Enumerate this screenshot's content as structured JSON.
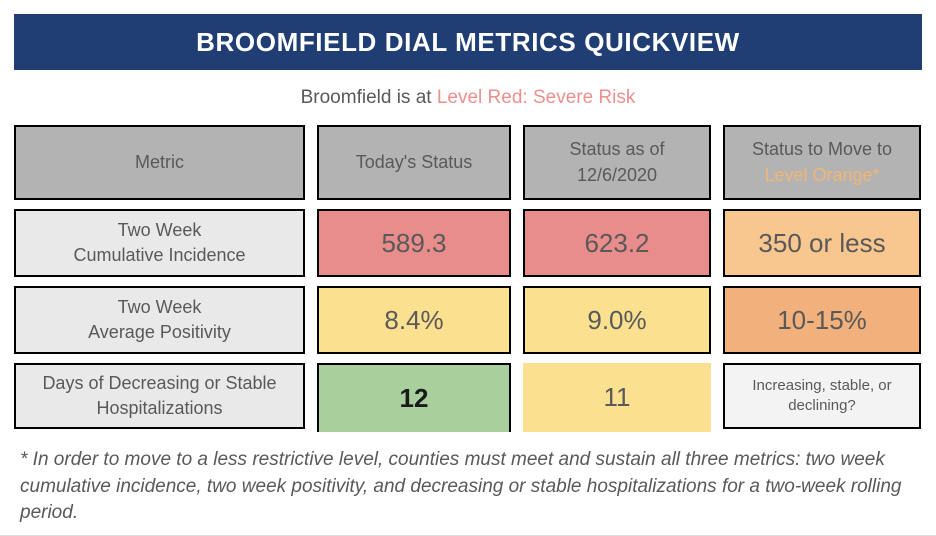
{
  "header": {
    "title": "BROOMFIELD DIAL METRICS QUICKVIEW"
  },
  "status_line": {
    "prefix": "Broomfield is at ",
    "level": "Level Red: Severe Risk"
  },
  "colors": {
    "navy": "#203e73",
    "header_gray": "#b3b3b3",
    "level_orange_text": "#f2b677",
    "level_red_text": "#ec8f8f",
    "status_red": "#e98c8c",
    "status_yellow": "#fbe18f",
    "status_green": "#a9cf9c",
    "status_orange_light": "#f7c78f",
    "status_orange": "#f1b07c",
    "metric_gray": "#e9e9e9",
    "note_gray": "#f3f3f3",
    "text_dark": "#595959",
    "text_black": "#1a1a1a"
  },
  "table": {
    "columns": [
      {
        "line1": "Metric",
        "line2": ""
      },
      {
        "line1": "Today's Status",
        "line2": ""
      },
      {
        "line1": "Status as of",
        "line2": "12/6/2020"
      },
      {
        "line1": "Status to Move to",
        "line2": "Level Orange*"
      }
    ],
    "rows": [
      {
        "metric_lines": [
          "Two Week",
          "Cumulative Incidence"
        ],
        "cells": [
          {
            "value": "589.3",
            "bg": "#e98c8c",
            "fg": "#595959"
          },
          {
            "value": "623.2",
            "bg": "#e98c8c",
            "fg": "#595959"
          },
          {
            "value": "350 or less",
            "bg": "#f7c78f",
            "fg": "#595959"
          }
        ]
      },
      {
        "metric_lines": [
          "Two Week",
          "Average Positivity"
        ],
        "cells": [
          {
            "value": "8.4%",
            "bg": "#fbe18f",
            "fg": "#595959"
          },
          {
            "value": "9.0%",
            "bg": "#fbe18f",
            "fg": "#595959"
          },
          {
            "value": "10-15%",
            "bg": "#f1b07c",
            "fg": "#595959"
          }
        ]
      },
      {
        "metric_lines": [
          "Days of Decreasing or Stable",
          "Hospitalizations"
        ],
        "cells": [
          {
            "value": "12",
            "bg": "#a9cf9c",
            "fg": "#1a1a1a"
          },
          {
            "value": "11",
            "bg": "#fbe18f",
            "fg": "#595959"
          },
          {
            "value": "Increasing, stable, or declining?",
            "bg": "#f3f3f3",
            "fg": "#595959"
          }
        ]
      }
    ]
  },
  "footnote": "* In order to move to a less restrictive level, counties must meet and sustain all three metrics: two week cumulative incidence, two week positivity, and decreasing or stable hospitalizations for a two-week rolling period.",
  "chart_data": {
    "type": "table",
    "title": "BROOMFIELD DIAL METRICS QUICKVIEW",
    "subtitle": "Broomfield is at Level Red: Severe Risk",
    "columns": [
      "Metric",
      "Today's Status",
      "Status as of 12/6/2020",
      "Status to Move to Level Orange*"
    ],
    "rows": [
      [
        "Two Week Cumulative Incidence",
        "589.3",
        "623.2",
        "350 or less"
      ],
      [
        "Two Week Average Positivity",
        "8.4%",
        "9.0%",
        "10-15%"
      ],
      [
        "Days of Decreasing or Stable Hospitalizations",
        "12",
        "11",
        "Increasing, stable, or declining?"
      ]
    ],
    "cell_status_colors": [
      [
        "red",
        "red",
        "orange"
      ],
      [
        "yellow",
        "yellow",
        "orange"
      ],
      [
        "green",
        "yellow",
        "neutral"
      ]
    ],
    "footnote": "* In order to move to a less restrictive level, counties must meet and sustain all three metrics: two week cumulative incidence, two week positivity, and decreasing or stable hospitalizations for a two-week rolling period."
  }
}
